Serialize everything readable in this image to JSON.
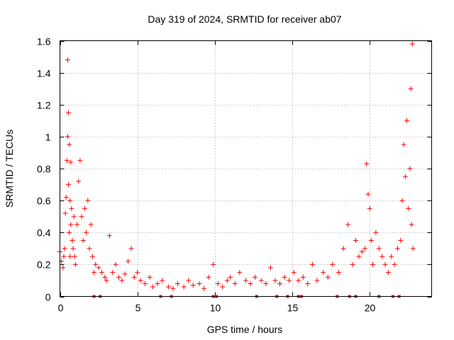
{
  "chart_data": {
    "type": "scatter",
    "title": "Day 319 of 2024, SRMTID for receiver ab07",
    "xlabel": "GPS time / hours",
    "ylabel": "SRMTID / TECUs",
    "xlim": [
      0,
      24
    ],
    "ylim": [
      0,
      1.6
    ],
    "xticks": [
      0,
      5,
      10,
      15,
      20
    ],
    "xtick_labels": [
      "0",
      "5",
      "10",
      "15",
      "20"
    ],
    "yticks": [
      0,
      0.2,
      0.4,
      0.6,
      0.8,
      1.0,
      1.2,
      1.4,
      1.6
    ],
    "ytick_labels": [
      "0",
      "0.2",
      "0.4",
      "0.6",
      "0.8",
      "1",
      "1.2",
      "1.4",
      "1.6"
    ],
    "grid": true,
    "marker": "+",
    "color": "#ff0000",
    "zero_marks_x": [
      2.2,
      2.6,
      6.5,
      7.2,
      9.9,
      10.1,
      12.7,
      14.0,
      14.7,
      15.4,
      15.6,
      17.9,
      18.7,
      19.1,
      20.6,
      21.5,
      21.9
    ],
    "series": [
      {
        "name": "SRMTID",
        "x": [
          0.0,
          0.1,
          0.2,
          0.25,
          0.3,
          0.35,
          0.4,
          0.45,
          0.5,
          0.5,
          0.55,
          0.55,
          0.6,
          0.6,
          0.65,
          0.65,
          0.7,
          0.7,
          0.75,
          0.8,
          0.85,
          0.9,
          0.95,
          1.0,
          1.1,
          1.2,
          1.3,
          1.4,
          1.5,
          1.6,
          1.7,
          1.8,
          1.9,
          2.0,
          2.1,
          2.2,
          2.3,
          2.5,
          2.7,
          2.9,
          3.0,
          3.2,
          3.4,
          3.6,
          3.8,
          4.0,
          4.2,
          4.4,
          4.6,
          4.8,
          5.0,
          5.2,
          5.5,
          5.8,
          6.0,
          6.3,
          6.6,
          7.0,
          7.3,
          7.6,
          8.0,
          8.3,
          8.6,
          9.0,
          9.3,
          9.6,
          9.9,
          10.2,
          10.5,
          10.8,
          11.0,
          11.3,
          11.6,
          12.0,
          12.3,
          12.6,
          13.0,
          13.3,
          13.6,
          13.9,
          14.2,
          14.5,
          14.8,
          15.1,
          15.4,
          15.7,
          16.0,
          16.3,
          16.6,
          17.0,
          17.3,
          17.6,
          18.0,
          18.3,
          18.6,
          18.9,
          19.1,
          19.3,
          19.5,
          19.7,
          19.8,
          19.9,
          20.0,
          20.1,
          20.2,
          20.4,
          20.6,
          20.8,
          21.0,
          21.2,
          21.4,
          21.6,
          21.8,
          22.0,
          22.1,
          22.2,
          22.3,
          22.4,
          22.5,
          22.6,
          22.65,
          22.7,
          22.75,
          22.8
        ],
        "y": [
          0.28,
          0.22,
          0.18,
          0.25,
          0.3,
          0.52,
          0.62,
          0.85,
          1.0,
          1.48,
          1.15,
          0.7,
          0.95,
          0.4,
          0.6,
          0.25,
          0.84,
          0.45,
          0.55,
          0.35,
          0.3,
          0.5,
          0.25,
          0.2,
          0.45,
          0.72,
          0.85,
          0.5,
          0.35,
          0.55,
          0.4,
          0.6,
          0.3,
          0.45,
          0.25,
          0.15,
          0.2,
          0.18,
          0.15,
          0.12,
          0.1,
          0.38,
          0.15,
          0.2,
          0.12,
          0.1,
          0.14,
          0.22,
          0.3,
          0.12,
          0.15,
          0.1,
          0.08,
          0.12,
          0.06,
          0.08,
          0.1,
          0.06,
          0.05,
          0.08,
          0.06,
          0.1,
          0.07,
          0.08,
          0.05,
          0.12,
          0.2,
          0.08,
          0.06,
          0.1,
          0.12,
          0.08,
          0.15,
          0.1,
          0.08,
          0.12,
          0.1,
          0.08,
          0.18,
          0.1,
          0.08,
          0.12,
          0.1,
          0.15,
          0.1,
          0.12,
          0.08,
          0.2,
          0.1,
          0.15,
          0.12,
          0.2,
          0.15,
          0.3,
          0.45,
          0.2,
          0.35,
          0.25,
          0.28,
          0.3,
          0.83,
          0.64,
          0.55,
          0.35,
          0.2,
          0.4,
          0.3,
          0.25,
          0.2,
          0.15,
          0.25,
          0.2,
          0.3,
          0.35,
          0.6,
          0.95,
          0.75,
          1.1,
          0.55,
          0.8,
          1.3,
          0.45,
          1.58,
          0.3
        ]
      }
    ]
  }
}
